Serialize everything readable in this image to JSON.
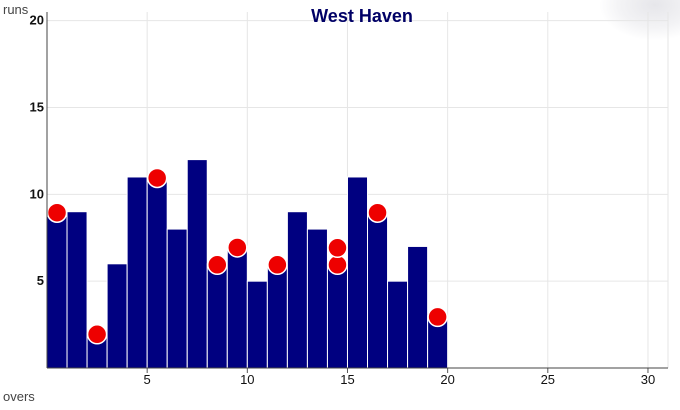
{
  "chart_data": {
    "type": "bar",
    "title": "West Haven",
    "xlabel": "overs",
    "ylabel": "runs",
    "xlim": [
      0,
      31
    ],
    "ylim": [
      0,
      20.5
    ],
    "x_ticks": [
      5,
      10,
      15,
      20,
      25,
      30
    ],
    "y_ticks": [
      5,
      10,
      15,
      20
    ],
    "grid": true,
    "series": [
      {
        "x": [
          1,
          2,
          3,
          4,
          5,
          6,
          7,
          8,
          9,
          10,
          11,
          12,
          13,
          14,
          15,
          16,
          17,
          18,
          19,
          20
        ],
        "values": [
          9,
          9,
          2,
          6,
          11,
          11,
          8,
          12,
          6,
          7,
          5,
          6,
          9,
          8,
          6,
          11,
          9,
          5,
          7,
          3
        ]
      }
    ],
    "wickets": [
      {
        "over": 1,
        "runs": 9
      },
      {
        "over": 3,
        "runs": 2
      },
      {
        "over": 6,
        "runs": 11
      },
      {
        "over": 9,
        "runs": 6
      },
      {
        "over": 10,
        "runs": 7
      },
      {
        "over": 12,
        "runs": 6
      },
      {
        "over": 15,
        "runs": 6
      },
      {
        "over": 15,
        "runs": 6
      },
      {
        "over": 17,
        "runs": 9
      },
      {
        "over": 20,
        "runs": 3
      }
    ],
    "colors": {
      "bar": "#000080",
      "bar_edge": "#ffffff",
      "wicket": "#ee0000",
      "wicket_edge": "#ffffff",
      "title": "#000066",
      "grid": "#e6e6e6"
    }
  }
}
